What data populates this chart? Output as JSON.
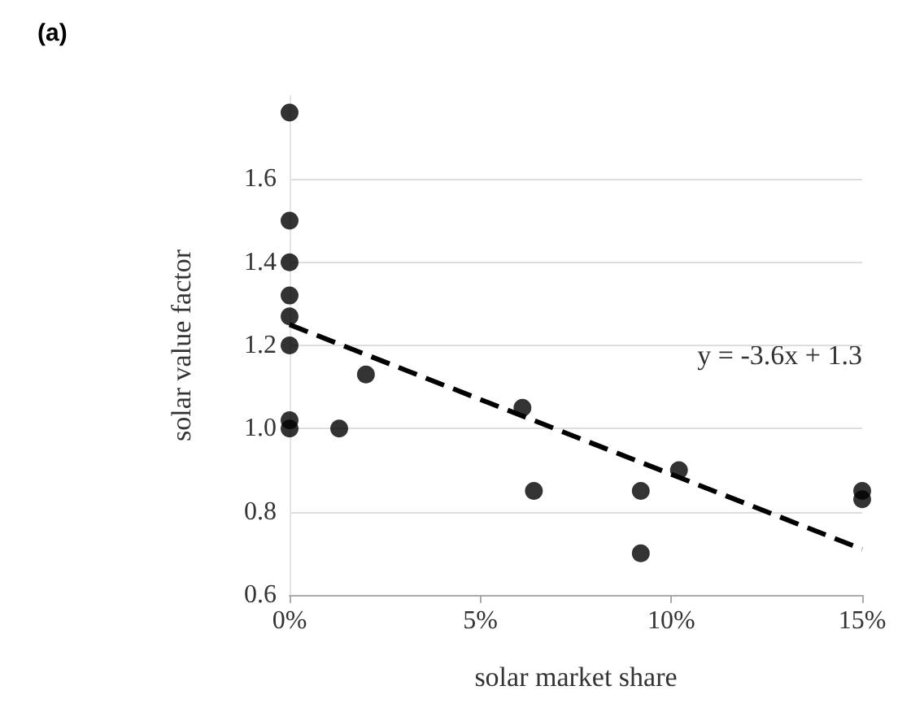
{
  "chart_data": {
    "type": "scatter",
    "title": "(a)",
    "xlabel": "solar market share",
    "ylabel": "solar value factor",
    "annotations": [
      "y = -3.6x + 1.3"
    ],
    "xlim": [
      0,
      0.15
    ],
    "xticks": [
      {
        "value": 0,
        "label": "0%"
      },
      {
        "value": 0.05,
        "label": "5%"
      },
      {
        "value": 0.1,
        "label": "10%"
      },
      {
        "value": 0.15,
        "label": "15%"
      }
    ],
    "ylim": [
      0.6,
      1.8
    ],
    "yticks": [
      0.6,
      0.8,
      {
        "value": 1,
        "label": "1.0"
      },
      1.2,
      1.4,
      1.6
    ],
    "grid": "y",
    "marker": "circle",
    "series": [
      {
        "color": "#000000",
        "x": [
          0,
          0,
          0,
          0,
          0,
          0,
          0,
          0,
          0.013,
          0.02,
          0.061,
          0.064,
          0.092,
          0.092,
          0.102,
          0.15,
          0.15
        ],
        "values": [
          1.76,
          1.5,
          1.4,
          1.32,
          1.27,
          1.2,
          1.02,
          1.0,
          1.0,
          1.13,
          1.05,
          0.85,
          0.85,
          0.7,
          0.9,
          0.85,
          0.83
        ]
      },
      {
        "type": "line",
        "color": "#000000",
        "line_style": "dashed",
        "marker": "none",
        "x": [
          0,
          0.15
        ],
        "values": [
          1.25,
          0.71
        ]
      }
    ]
  }
}
